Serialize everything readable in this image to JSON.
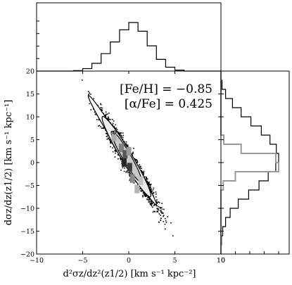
{
  "chart_data": {
    "type": "scatter",
    "main": {
      "xlabel": "d²σz/dz²(z1/2) [km s⁻¹ kpc⁻²]",
      "ylabel": "dσz/dz(z1/2) [km s⁻¹ kpc⁻¹]",
      "xlim": [
        -10,
        10
      ],
      "ylim": [
        -20,
        20
      ],
      "x_ticks": [
        -10,
        -5,
        0,
        5,
        10
      ],
      "y_ticks": [
        -20,
        -15,
        -10,
        -5,
        0,
        5,
        10,
        15,
        20
      ],
      "annotations": [
        "[Fe/H]  =  −0.85",
        "[α/Fe]  =  0.425"
      ],
      "trend": {
        "slope": -3.2,
        "intercept": 0.5
      },
      "x_extent": [
        -5.3,
        5.0
      ],
      "contours": [
        {
          "level": "outer",
          "x_range": [
            -4.4,
            3.0
          ],
          "half_width_y": 1.6,
          "fill": "#ffffff"
        },
        {
          "level": "middle",
          "x_range": [
            -2.9,
            2.4
          ],
          "half_width_y": 2.3,
          "fill": "#ececec"
        },
        {
          "level": "inner",
          "x_range": [
            -1.9,
            1.4
          ],
          "half_width_y": 1.8,
          "fill": "#c8c8c8"
        }
      ],
      "density_blocks": [
        {
          "x": -1.6,
          "y": 5.6,
          "gray": "#aaaaaa"
        },
        {
          "x": -0.8,
          "y": 3.2,
          "gray": "#808080"
        },
        {
          "x": -0.4,
          "y": 1.8,
          "gray": "#555555"
        },
        {
          "x": -0.5,
          "y": 0.0,
          "gray": "#262626"
        },
        {
          "x": 0.1,
          "y": -1.0,
          "gray": "#3a3a3a"
        },
        {
          "x": 0.0,
          "y": 2.5,
          "gray": "#999999"
        },
        {
          "x": 0.4,
          "y": -3.5,
          "gray": "#8c8c8c"
        },
        {
          "x": 0.9,
          "y": -5.8,
          "gray": "#b5b5b5"
        },
        {
          "x": 1.3,
          "y": -4.0,
          "gray": "#c2c2c2"
        }
      ]
    },
    "top_histogram": {
      "variable": "d²σz/dz²(z1/2)",
      "bin_edges": [
        -10,
        -9,
        -8,
        -7,
        -6,
        -5,
        -4,
        -3,
        -2,
        -1,
        0,
        1,
        2,
        3,
        4,
        5,
        6,
        7,
        8,
        9,
        10
      ],
      "counts": [
        0,
        0,
        0,
        0,
        0.01,
        0.05,
        0.16,
        0.36,
        0.6,
        0.85,
        1.0,
        0.82,
        0.52,
        0.24,
        0.08,
        0.02,
        0,
        0,
        0,
        0
      ]
    },
    "right_histogram": {
      "variable": "dσz/dz(z1/2)",
      "bin_edges": [
        -20,
        -18,
        -16,
        -14,
        -12,
        -10,
        -8,
        -6,
        -4,
        -2,
        0,
        2,
        4,
        6,
        8,
        10,
        12,
        14,
        16,
        18,
        20
      ],
      "series": [
        {
          "color": "#000000",
          "counts": [
            0,
            0.01,
            0.03,
            0.08,
            0.16,
            0.3,
            0.48,
            0.66,
            0.82,
            0.95,
            1.0,
            0.96,
            0.85,
            0.7,
            0.52,
            0.35,
            0.2,
            0.08,
            0.02,
            0
          ]
        },
        {
          "color": "#999999",
          "counts": [
            0,
            0,
            0,
            0,
            0,
            0,
            0,
            0.04,
            0.25,
            1.0,
            0.95,
            0.35,
            0.05,
            0,
            0,
            0,
            0,
            0,
            0,
            0
          ]
        }
      ]
    }
  }
}
